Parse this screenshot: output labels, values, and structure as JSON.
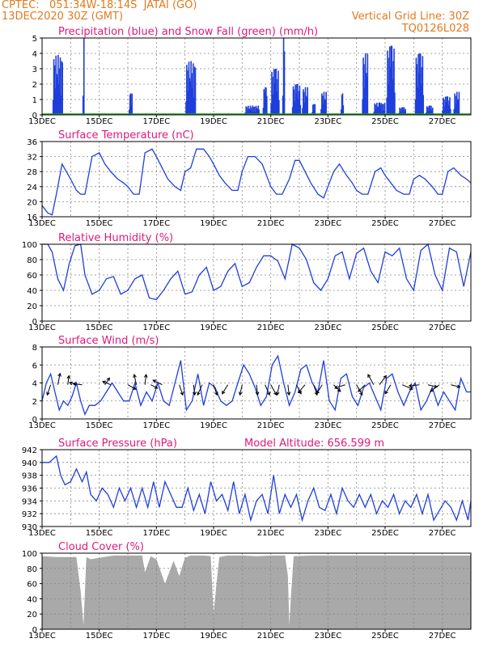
{
  "header": {
    "source": "CPTEC:",
    "location": "051:34W-18:14S  JATAI (GO)",
    "run": "13DEC2020 30Z (GMT)",
    "grid_note": "Vertical Grid Line: 30Z",
    "station_code": "TQ0126L028"
  },
  "x_tick_labels": [
    "13DEC",
    "15DEC",
    "17DEC",
    "19DEC",
    "21DEC",
    "23DEC",
    "25DEC",
    "27DEC"
  ],
  "panels": {
    "precip": {
      "title": "Precipitation (blue) and Snow Fall (green) (mm/h)"
    },
    "temp": {
      "title": "Surface Temperature (nC)"
    },
    "rh": {
      "title": "Relative Humidity (%)"
    },
    "wind": {
      "title": "Surface Wind (m/s)"
    },
    "pres": {
      "title": "Surface Pressure (hPa)",
      "extra": "Model Altitude: 656.599 m"
    },
    "cloud": {
      "title": "Cloud Cover (%)"
    }
  },
  "colors": {
    "series": "#1f3fdc",
    "snow": "#19a319",
    "cloud": "#a9a9a9",
    "title": "#e0197a",
    "header": "#e07a1f"
  },
  "chart_data": [
    {
      "type": "bar",
      "name": "precip",
      "x_range": [
        0,
        15
      ],
      "ylim": [
        0,
        5
      ],
      "yticks": [
        0,
        1,
        2,
        3,
        4,
        5
      ],
      "events": [
        {
          "day": 0.55,
          "peak": 3.9,
          "width": 0.35
        },
        {
          "day": 1.45,
          "peak": 5.0,
          "width": 0.06
        },
        {
          "day": 3.1,
          "peak": 1.4,
          "width": 0.12
        },
        {
          "day": 5.2,
          "peak": 3.5,
          "width": 0.35
        },
        {
          "day": 7.35,
          "peak": 0.6,
          "width": 0.5
        },
        {
          "day": 7.8,
          "peak": 1.8,
          "width": 0.15
        },
        {
          "day": 8.15,
          "peak": 3.0,
          "width": 0.3
        },
        {
          "day": 8.45,
          "peak": 5.0,
          "width": 0.08
        },
        {
          "day": 8.9,
          "peak": 2.0,
          "width": 0.3
        },
        {
          "day": 9.2,
          "peak": 1.8,
          "width": 0.2
        },
        {
          "day": 9.5,
          "peak": 0.7,
          "width": 0.12
        },
        {
          "day": 9.85,
          "peak": 1.5,
          "width": 0.2
        },
        {
          "day": 10.5,
          "peak": 1.4,
          "width": 0.1
        },
        {
          "day": 11.3,
          "peak": 4.0,
          "width": 0.2
        },
        {
          "day": 11.8,
          "peak": 0.8,
          "width": 0.4
        },
        {
          "day": 12.2,
          "peak": 4.5,
          "width": 0.3
        },
        {
          "day": 12.6,
          "peak": 0.5,
          "width": 0.25
        },
        {
          "day": 13.2,
          "peak": 4.0,
          "width": 0.3
        },
        {
          "day": 13.55,
          "peak": 0.6,
          "width": 0.25
        },
        {
          "day": 14.15,
          "peak": 1.2,
          "width": 0.3
        },
        {
          "day": 14.5,
          "peak": 1.5,
          "width": 0.2
        }
      ]
    },
    {
      "type": "line",
      "name": "temperature",
      "x_range": [
        0,
        15
      ],
      "ylim": [
        16,
        36
      ],
      "yticks": [
        16,
        20,
        24,
        28,
        32,
        36
      ],
      "x": [
        0,
        0.1,
        0.2,
        0.35,
        0.5,
        0.7,
        0.85,
        1.0,
        1.2,
        1.35,
        1.5,
        1.75,
        2.0,
        2.2,
        2.4,
        2.65,
        2.85,
        3.0,
        3.2,
        3.4,
        3.6,
        3.85,
        4.0,
        4.2,
        4.4,
        4.65,
        4.85,
        5.0,
        5.2,
        5.4,
        5.65,
        5.85,
        6.0,
        6.2,
        6.4,
        6.65,
        6.85,
        7.0,
        7.2,
        7.45,
        7.7,
        7.85,
        8.0,
        8.2,
        8.4,
        8.65,
        8.85,
        9.0,
        9.2,
        9.4,
        9.65,
        9.85,
        10.0,
        10.2,
        10.4,
        10.65,
        10.85,
        11.0,
        11.2,
        11.4,
        11.65,
        11.85,
        12.0,
        12.2,
        12.4,
        12.65,
        12.85,
        13.0,
        13.2,
        13.4,
        13.65,
        13.85,
        14.0,
        14.2,
        14.4,
        14.65,
        14.85,
        15.0
      ],
      "y": [
        19,
        18,
        17,
        16.5,
        22,
        30,
        28,
        26,
        23,
        22,
        22,
        32,
        33,
        30,
        28,
        26,
        25,
        24,
        22,
        22,
        33,
        34,
        32,
        29,
        26,
        24,
        23,
        28,
        29,
        34,
        34,
        32,
        30,
        27,
        25,
        23,
        23,
        28,
        32,
        32,
        30,
        27,
        24,
        22,
        22,
        26,
        31,
        31,
        28,
        25,
        22,
        21,
        24,
        28,
        30,
        27,
        25,
        23,
        22,
        22,
        28,
        29,
        27,
        25,
        23,
        22,
        22,
        26,
        27,
        26,
        24,
        22,
        22,
        28,
        29,
        27,
        26,
        25
      ]
    },
    {
      "type": "line",
      "name": "relative_humidity",
      "x_range": [
        0,
        15
      ],
      "ylim": [
        0,
        100
      ],
      "yticks": [
        0,
        20,
        40,
        60,
        80,
        100
      ],
      "x": [
        0,
        0.2,
        0.35,
        0.55,
        0.75,
        0.95,
        1.15,
        1.35,
        1.5,
        1.75,
        2.0,
        2.25,
        2.5,
        2.75,
        3.0,
        3.25,
        3.5,
        3.75,
        4.0,
        4.25,
        4.5,
        4.75,
        5.0,
        5.25,
        5.5,
        5.75,
        6.0,
        6.25,
        6.5,
        6.75,
        7.0,
        7.25,
        7.5,
        7.75,
        8.0,
        8.25,
        8.5,
        8.75,
        9.0,
        9.25,
        9.5,
        9.75,
        10.0,
        10.25,
        10.5,
        10.75,
        11.0,
        11.25,
        11.5,
        11.75,
        12.0,
        12.25,
        12.5,
        12.75,
        13.0,
        13.25,
        13.5,
        13.75,
        14.0,
        14.25,
        14.5,
        14.75,
        15.0
      ],
      "y": [
        100,
        100,
        90,
        55,
        40,
        75,
        98,
        100,
        60,
        35,
        40,
        55,
        58,
        35,
        40,
        55,
        60,
        30,
        28,
        40,
        55,
        65,
        35,
        38,
        60,
        70,
        40,
        45,
        65,
        75,
        45,
        50,
        70,
        85,
        85,
        78,
        55,
        100,
        95,
        80,
        50,
        40,
        55,
        85,
        90,
        55,
        88,
        95,
        65,
        50,
        90,
        85,
        95,
        55,
        40,
        92,
        100,
        60,
        40,
        95,
        90,
        45,
        90
      ]
    },
    {
      "type": "line",
      "name": "surface_wind",
      "x_range": [
        0,
        15
      ],
      "ylim": [
        0,
        8
      ],
      "yticks": [
        0,
        2,
        4,
        6,
        8
      ],
      "x": [
        0,
        0.15,
        0.3,
        0.45,
        0.6,
        0.75,
        0.9,
        1.05,
        1.2,
        1.35,
        1.5,
        1.65,
        1.85,
        2.05,
        2.25,
        2.45,
        2.65,
        2.85,
        3.05,
        3.25,
        3.45,
        3.65,
        3.85,
        4.05,
        4.25,
        4.45,
        4.65,
        4.85,
        5.05,
        5.25,
        5.45,
        5.65,
        5.85,
        6.05,
        6.25,
        6.45,
        6.65,
        6.85,
        7.05,
        7.25,
        7.45,
        7.65,
        7.85,
        8.05,
        8.25,
        8.45,
        8.65,
        8.85,
        9.05,
        9.25,
        9.45,
        9.65,
        9.85,
        10.05,
        10.25,
        10.45,
        10.65,
        10.85,
        11.05,
        11.25,
        11.45,
        11.65,
        11.85,
        12.05,
        12.25,
        12.45,
        12.65,
        12.85,
        13.05,
        13.25,
        13.45,
        13.65,
        13.85,
        14.05,
        14.25,
        14.45,
        14.65,
        14.85,
        15.0
      ],
      "y": [
        2,
        4,
        5,
        3,
        1,
        2,
        1.5,
        2.5,
        4,
        2,
        0.5,
        1.5,
        1.5,
        2,
        3,
        4,
        3,
        2,
        2,
        4,
        1.5,
        3,
        2,
        4,
        2,
        1.5,
        4,
        6.5,
        1,
        2,
        5,
        1.5,
        4,
        3.5,
        2,
        1.5,
        2,
        4,
        6,
        5,
        3.5,
        1.5,
        2.5,
        6,
        7,
        4,
        1.5,
        3,
        5.5,
        6,
        4,
        3,
        6.5,
        2,
        1,
        4.5,
        5,
        2.5,
        1.5,
        3.5,
        4,
        2.5,
        1,
        4.5,
        5,
        3,
        1.5,
        3,
        4,
        1,
        2,
        3.5,
        1.5,
        3,
        2,
        1,
        4.5,
        3,
        3
      ]
    },
    {
      "type": "line",
      "name": "surface_pressure",
      "x_range": [
        0,
        15
      ],
      "ylim": [
        930,
        942
      ],
      "yticks": [
        930,
        932,
        934,
        936,
        938,
        940,
        942
      ],
      "x": [
        0,
        0.25,
        0.5,
        0.65,
        0.8,
        1.0,
        1.2,
        1.4,
        1.55,
        1.7,
        1.9,
        2.1,
        2.3,
        2.5,
        2.7,
        2.9,
        3.1,
        3.3,
        3.5,
        3.7,
        3.9,
        4.1,
        4.3,
        4.5,
        4.7,
        4.9,
        5.1,
        5.3,
        5.5,
        5.7,
        5.9,
        6.1,
        6.3,
        6.5,
        6.7,
        6.9,
        7.1,
        7.3,
        7.5,
        7.7,
        7.9,
        8.1,
        8.3,
        8.5,
        8.7,
        8.9,
        9.1,
        9.3,
        9.5,
        9.7,
        9.9,
        10.1,
        10.3,
        10.5,
        10.7,
        10.9,
        11.1,
        11.3,
        11.5,
        11.7,
        11.9,
        12.1,
        12.3,
        12.5,
        12.7,
        12.9,
        13.1,
        13.3,
        13.5,
        13.7,
        13.9,
        14.1,
        14.3,
        14.5,
        14.7,
        14.9,
        15.0
      ],
      "y": [
        940,
        940,
        941,
        938,
        936.5,
        937,
        939,
        937,
        938.5,
        935,
        934,
        936,
        935,
        933,
        936,
        934,
        936,
        933,
        936,
        933,
        937,
        933,
        937,
        935,
        933,
        933,
        936,
        932.5,
        935,
        932,
        937,
        934,
        935,
        932.5,
        937,
        932,
        935,
        931,
        934,
        935,
        932,
        938,
        932,
        935,
        933,
        935,
        931,
        934,
        936,
        933,
        932.5,
        935,
        932,
        936,
        934,
        933,
        935,
        933,
        935,
        932,
        934,
        933,
        935,
        932,
        934,
        933,
        935,
        932,
        935,
        931,
        932.5,
        934,
        933,
        931,
        934,
        931,
        934
      ]
    },
    {
      "type": "area",
      "name": "cloud_cover",
      "x_range": [
        0,
        15
      ],
      "ylim": [
        0,
        100
      ],
      "yticks": [
        0,
        20,
        40,
        60,
        80,
        100
      ],
      "x": [
        0,
        0.5,
        1.2,
        1.35,
        1.45,
        1.55,
        1.7,
        2.5,
        3.5,
        3.6,
        3.8,
        4.0,
        4.3,
        4.6,
        4.8,
        5.0,
        5.2,
        5.6,
        5.9,
        6.0,
        6.1,
        6.2,
        6.5,
        7.0,
        7.5,
        8.0,
        8.5,
        8.6,
        8.65,
        8.7,
        8.8,
        9.5,
        10.0,
        10.5,
        11.0,
        11.5,
        12.0,
        12.5,
        13.0,
        13.5,
        14.0,
        14.5,
        15.0
      ],
      "y": [
        96,
        95,
        95,
        50,
        5,
        95,
        92,
        97,
        97,
        75,
        96,
        92,
        60,
        90,
        70,
        94,
        97,
        97,
        96,
        20,
        60,
        95,
        97,
        97,
        96,
        97,
        97,
        70,
        5,
        40,
        96,
        97,
        97,
        97,
        97,
        97,
        97,
        97,
        97,
        97,
        97,
        97,
        97
      ]
    }
  ]
}
